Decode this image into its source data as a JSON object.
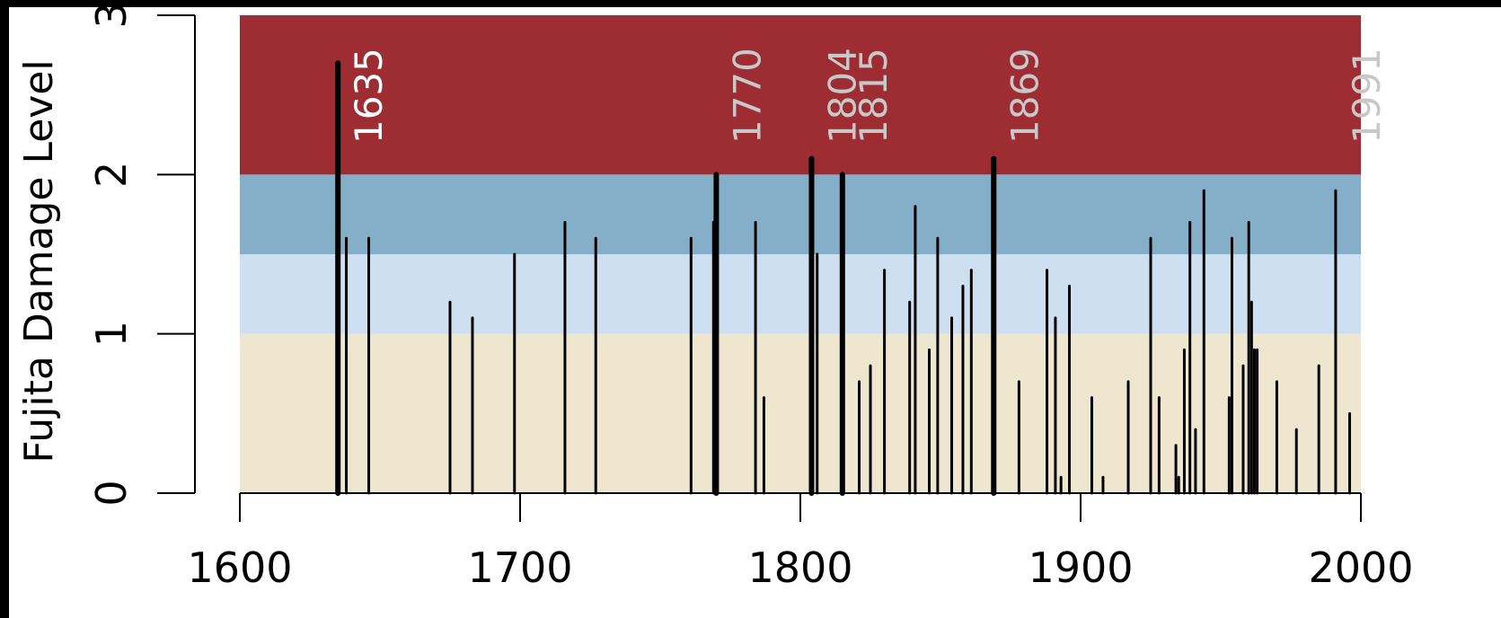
{
  "chart_data": {
    "type": "bar",
    "ylabel": "Fujita Damage Level",
    "xlim": [
      1600,
      2000
    ],
    "ylim": [
      0,
      3
    ],
    "x_ticks": [
      "1600",
      "1700",
      "1800",
      "1900",
      "2000"
    ],
    "y_ticks": [
      "0",
      "1",
      "2",
      "3"
    ],
    "grid": false,
    "bands": [
      {
        "from": 0,
        "to": 1,
        "color": "#efe6cf"
      },
      {
        "from": 1,
        "to": 1.5,
        "color": "#cddff0"
      },
      {
        "from": 1.5,
        "to": 2,
        "color": "#85aec8"
      },
      {
        "from": 2,
        "to": 3,
        "color": "#9e2c33"
      }
    ],
    "series": [
      {
        "values": [
          {
            "x": 1635,
            "y": 2.7
          },
          {
            "x": 1638,
            "y": 1.6
          },
          {
            "x": 1646,
            "y": 1.6
          },
          {
            "x": 1675,
            "y": 1.2
          },
          {
            "x": 1683,
            "y": 1.1
          },
          {
            "x": 1698,
            "y": 1.5
          },
          {
            "x": 1716,
            "y": 1.7
          },
          {
            "x": 1727,
            "y": 1.6
          },
          {
            "x": 1761,
            "y": 1.6
          },
          {
            "x": 1769,
            "y": 1.7
          },
          {
            "x": 1770,
            "y": 2.0
          },
          {
            "x": 1784,
            "y": 1.7
          },
          {
            "x": 1787,
            "y": 0.6
          },
          {
            "x": 1804,
            "y": 2.1
          },
          {
            "x": 1806,
            "y": 1.5
          },
          {
            "x": 1815,
            "y": 2.0
          },
          {
            "x": 1821,
            "y": 0.7
          },
          {
            "x": 1825,
            "y": 0.8
          },
          {
            "x": 1830,
            "y": 1.4
          },
          {
            "x": 1839,
            "y": 1.2
          },
          {
            "x": 1841,
            "y": 1.8
          },
          {
            "x": 1846,
            "y": 0.9
          },
          {
            "x": 1849,
            "y": 1.6
          },
          {
            "x": 1854,
            "y": 1.1
          },
          {
            "x": 1858,
            "y": 1.3
          },
          {
            "x": 1861,
            "y": 1.4
          },
          {
            "x": 1869,
            "y": 2.1
          },
          {
            "x": 1878,
            "y": 0.7
          },
          {
            "x": 1888,
            "y": 1.4
          },
          {
            "x": 1891,
            "y": 1.1
          },
          {
            "x": 1893,
            "y": 0.1
          },
          {
            "x": 1896,
            "y": 1.3
          },
          {
            "x": 1904,
            "y": 0.6
          },
          {
            "x": 1908,
            "y": 0.1
          },
          {
            "x": 1917,
            "y": 0.7
          },
          {
            "x": 1925,
            "y": 1.6
          },
          {
            "x": 1928,
            "y": 0.6
          },
          {
            "x": 1934,
            "y": 0.3
          },
          {
            "x": 1935,
            "y": 0.1
          },
          {
            "x": 1937,
            "y": 0.9
          },
          {
            "x": 1939,
            "y": 1.7
          },
          {
            "x": 1941,
            "y": 0.4
          },
          {
            "x": 1944,
            "y": 1.9
          },
          {
            "x": 1953,
            "y": 0.6
          },
          {
            "x": 1954,
            "y": 1.6
          },
          {
            "x": 1958,
            "y": 0.8
          },
          {
            "x": 1960,
            "y": 1.7
          },
          {
            "x": 1961,
            "y": 1.2
          },
          {
            "x": 1962,
            "y": 0.9
          },
          {
            "x": 1963,
            "y": 0.9
          },
          {
            "x": 1970,
            "y": 0.7
          },
          {
            "x": 1977,
            "y": 0.4
          },
          {
            "x": 1985,
            "y": 0.8
          },
          {
            "x": 1991,
            "y": 1.9
          },
          {
            "x": 1996,
            "y": 0.5
          }
        ]
      }
    ],
    "annotations": [
      {
        "x": 1635,
        "text": "1635",
        "color": "#ffffff"
      },
      {
        "x": 1770,
        "text": "1770",
        "color": "#c8c8c8"
      },
      {
        "x": 1804,
        "text": "1804",
        "color": "#c8c8c8"
      },
      {
        "x": 1815,
        "text": "1815",
        "color": "#c8c8c8"
      },
      {
        "x": 1869,
        "text": "1869",
        "color": "#c8c8c8"
      },
      {
        "x": 1991,
        "text": "1991",
        "color": "#c8c8c8"
      }
    ]
  }
}
